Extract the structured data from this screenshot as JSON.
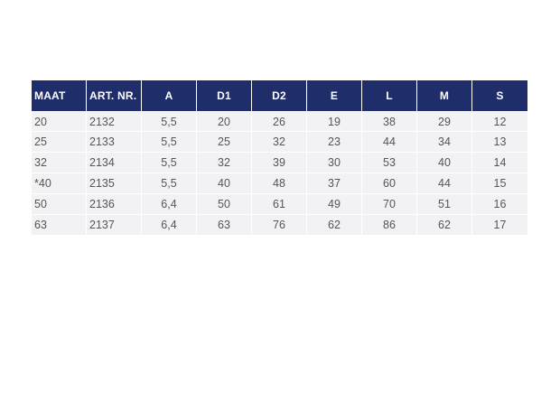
{
  "table": {
    "headers": [
      "MAAT",
      "ART. NR.",
      "A",
      "D1",
      "D2",
      "E",
      "L",
      "M",
      "S"
    ],
    "rows": [
      [
        "20",
        "2132",
        "5,5",
        "20",
        "26",
        "19",
        "38",
        "29",
        "12"
      ],
      [
        "25",
        "2133",
        "5,5",
        "25",
        "32",
        "23",
        "44",
        "34",
        "13"
      ],
      [
        "32",
        "2134",
        "5,5",
        "32",
        "39",
        "30",
        "53",
        "40",
        "14"
      ],
      [
        "*40",
        "2135",
        "5,5",
        "40",
        "48",
        "37",
        "60",
        "44",
        "15"
      ],
      [
        "50",
        "2136",
        "6,4",
        "50",
        "61",
        "49",
        "70",
        "51",
        "16"
      ],
      [
        "63",
        "2137",
        "6,4",
        "63",
        "76",
        "62",
        "86",
        "62",
        "17"
      ]
    ]
  },
  "colors": {
    "header_bg": "#1f2e6b",
    "header_text": "#ffffff",
    "cell_bg": "#f2f2f4",
    "cell_text": "#555555"
  }
}
